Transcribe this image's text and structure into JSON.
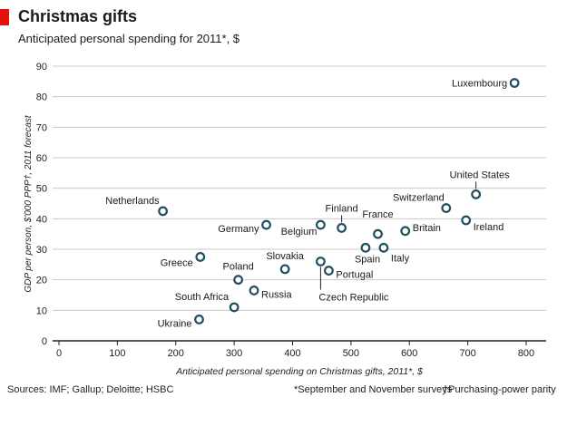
{
  "header": {
    "title": "Christmas gifts",
    "subtitle": "Anticipated personal spending for 2011*, $"
  },
  "footer": {
    "sources": "Sources: IMF; Gallup; Deloitte; HSBC",
    "footnote1": "*September and November surveys",
    "footnote2": "†Purchasing-power parity"
  },
  "chart_data": {
    "type": "scatter",
    "title": "Christmas gifts",
    "subtitle": "Anticipated personal spending for 2011*, $",
    "xlabel": "Anticipated personal spending on Christmas gifts, 2011*, $",
    "ylabel": "GDP per person, $'000 PPP†, 2011 forecast",
    "xlim": [
      0,
      800
    ],
    "ylim": [
      0,
      90
    ],
    "xticks": [
      0,
      100,
      200,
      300,
      400,
      500,
      600,
      700,
      800
    ],
    "yticks": [
      0,
      10,
      20,
      30,
      40,
      50,
      60,
      70,
      80,
      90
    ],
    "grid": "horizontal",
    "marker_color": "#1f4e5f",
    "points": [
      {
        "label": "Luxembourg",
        "x": 780,
        "y": 84.5
      },
      {
        "label": "United States",
        "x": 714,
        "y": 48
      },
      {
        "label": "Switzerland",
        "x": 663,
        "y": 43.5
      },
      {
        "label": "Ireland",
        "x": 697,
        "y": 39.5
      },
      {
        "label": "Netherlands",
        "x": 178,
        "y": 42.5
      },
      {
        "label": "Germany",
        "x": 355,
        "y": 38
      },
      {
        "label": "Belgium",
        "x": 448,
        "y": 38
      },
      {
        "label": "Finland",
        "x": 484,
        "y": 37
      },
      {
        "label": "France",
        "x": 546,
        "y": 35
      },
      {
        "label": "Britain",
        "x": 593,
        "y": 36
      },
      {
        "label": "Spain",
        "x": 525,
        "y": 30.5
      },
      {
        "label": "Italy",
        "x": 556,
        "y": 30.5
      },
      {
        "label": "Greece",
        "x": 242,
        "y": 27.5
      },
      {
        "label": "Slovakia",
        "x": 387,
        "y": 23.5
      },
      {
        "label": "Czech Republic",
        "x": 448,
        "y": 26
      },
      {
        "label": "Portugal",
        "x": 462,
        "y": 23
      },
      {
        "label": "Poland",
        "x": 307,
        "y": 20
      },
      {
        "label": "Russia",
        "x": 334,
        "y": 16.5
      },
      {
        "label": "South Africa",
        "x": 300,
        "y": 11
      },
      {
        "label": "Ukraine",
        "x": 240,
        "y": 7
      }
    ]
  }
}
